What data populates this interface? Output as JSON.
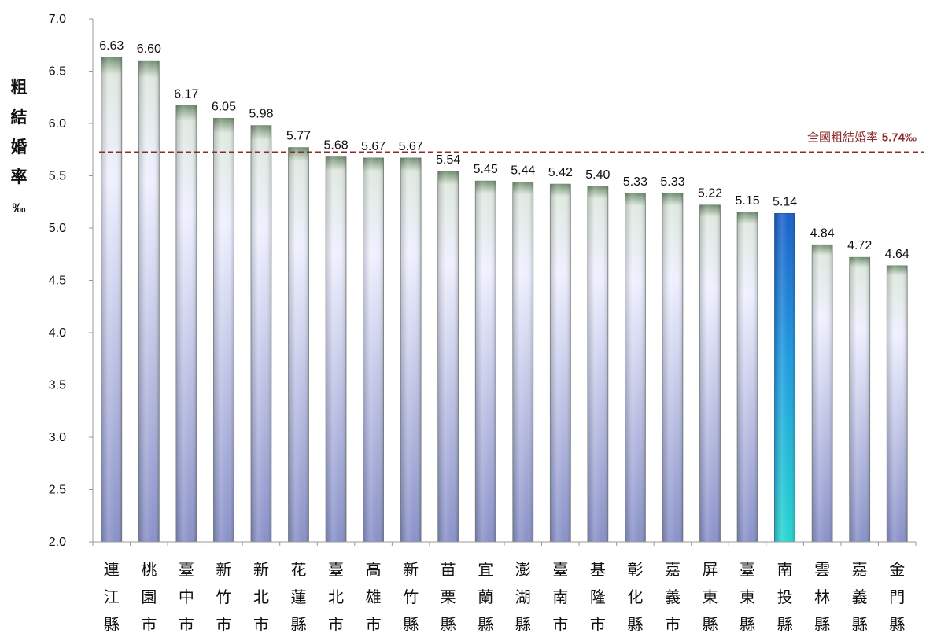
{
  "chart_data": {
    "type": "bar",
    "title": "",
    "ylabel": "粗結婚率‰",
    "xlabel": "",
    "ylim": [
      2.0,
      7.0
    ],
    "yticks": [
      "2.0",
      "2.5",
      "3.0",
      "3.5",
      "4.0",
      "4.5",
      "5.0",
      "5.5",
      "6.0",
      "6.5",
      "7.0"
    ],
    "categories": [
      "連江縣",
      "桃園市",
      "臺中市",
      "新竹市",
      "新北市",
      "花蓮縣",
      "臺北市",
      "高雄市",
      "新竹縣",
      "苗栗縣",
      "宜蘭縣",
      "澎湖縣",
      "臺南市",
      "基隆市",
      "彰化縣",
      "嘉義市",
      "屏東縣",
      "臺東縣",
      "南投縣",
      "雲林縣",
      "嘉義縣",
      "金門縣"
    ],
    "values": [
      6.63,
      6.6,
      6.17,
      6.05,
      5.98,
      5.77,
      5.68,
      5.67,
      5.67,
      5.54,
      5.45,
      5.44,
      5.42,
      5.4,
      5.33,
      5.33,
      5.22,
      5.15,
      5.14,
      4.84,
      4.72,
      4.64
    ],
    "value_labels": [
      "6.63",
      "6.60",
      "6.17",
      "6.05",
      "5.98",
      "5.77",
      "5.68",
      "5.67",
      "5.67",
      "5.54",
      "5.45",
      "5.44",
      "5.42",
      "5.40",
      "5.33",
      "5.33",
      "5.22",
      "5.15",
      "5.14",
      "4.84",
      "4.72",
      "4.64"
    ],
    "highlight_category": "南投縣",
    "reference_line": {
      "value": 5.74,
      "label_text": "全國粗結婚率",
      "label_value": "5.74‰",
      "color": "#8b2c2c"
    },
    "grid": false,
    "colors": {
      "bar_top": "#6f8f6f",
      "bar_mid": "#eef0ff",
      "bar_bottom": "#8890c8",
      "highlight_top": "#1a5fc8",
      "highlight_bottom": "#26d6d0"
    }
  }
}
